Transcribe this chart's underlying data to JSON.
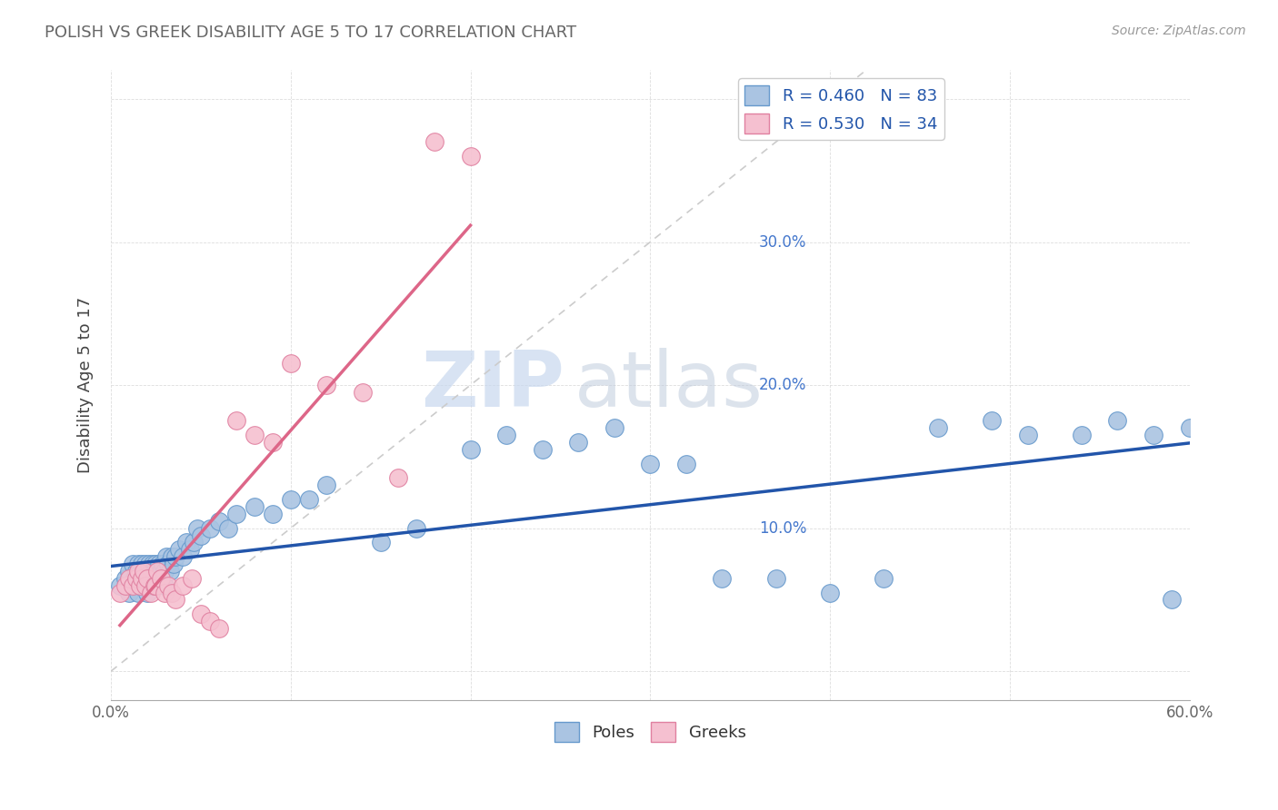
{
  "title": "POLISH VS GREEK DISABILITY AGE 5 TO 17 CORRELATION CHART",
  "source": "Source: ZipAtlas.com",
  "ylabel": "Disability Age 5 to 17",
  "xlim": [
    0.0,
    0.6
  ],
  "ylim": [
    -0.02,
    0.42
  ],
  "poles_color": "#aac4e2",
  "poles_edge_color": "#6699cc",
  "greeks_color": "#f5c0d0",
  "greeks_edge_color": "#e080a0",
  "poles_R": 0.46,
  "poles_N": 83,
  "greeks_R": 0.53,
  "greeks_N": 34,
  "poles_line_color": "#2255aa",
  "greeks_line_color": "#dd6688",
  "diagonal_color": "#cccccc",
  "watermark_zip": "ZIP",
  "watermark_atlas": "atlas",
  "right_axis_color": "#4477cc",
  "poles_x": [
    0.005,
    0.008,
    0.01,
    0.01,
    0.012,
    0.012,
    0.013,
    0.014,
    0.015,
    0.015,
    0.015,
    0.016,
    0.016,
    0.017,
    0.017,
    0.018,
    0.018,
    0.019,
    0.019,
    0.02,
    0.02,
    0.02,
    0.021,
    0.021,
    0.022,
    0.022,
    0.023,
    0.023,
    0.024,
    0.024,
    0.025,
    0.025,
    0.026,
    0.026,
    0.027,
    0.028,
    0.028,
    0.029,
    0.03,
    0.03,
    0.031,
    0.032,
    0.033,
    0.034,
    0.035,
    0.036,
    0.038,
    0.04,
    0.042,
    0.044,
    0.046,
    0.048,
    0.05,
    0.055,
    0.06,
    0.065,
    0.07,
    0.08,
    0.09,
    0.1,
    0.11,
    0.12,
    0.15,
    0.17,
    0.2,
    0.22,
    0.24,
    0.26,
    0.28,
    0.3,
    0.32,
    0.34,
    0.37,
    0.4,
    0.43,
    0.46,
    0.49,
    0.51,
    0.54,
    0.56,
    0.58,
    0.59,
    0.6
  ],
  "poles_y": [
    0.06,
    0.065,
    0.055,
    0.07,
    0.06,
    0.075,
    0.065,
    0.07,
    0.055,
    0.065,
    0.075,
    0.06,
    0.07,
    0.065,
    0.075,
    0.06,
    0.07,
    0.065,
    0.075,
    0.055,
    0.065,
    0.07,
    0.06,
    0.075,
    0.065,
    0.07,
    0.06,
    0.075,
    0.065,
    0.07,
    0.06,
    0.075,
    0.07,
    0.065,
    0.075,
    0.065,
    0.07,
    0.075,
    0.06,
    0.07,
    0.08,
    0.075,
    0.07,
    0.08,
    0.075,
    0.08,
    0.085,
    0.08,
    0.09,
    0.085,
    0.09,
    0.1,
    0.095,
    0.1,
    0.105,
    0.1,
    0.11,
    0.115,
    0.11,
    0.12,
    0.12,
    0.13,
    0.09,
    0.1,
    0.155,
    0.165,
    0.155,
    0.16,
    0.17,
    0.145,
    0.145,
    0.065,
    0.065,
    0.055,
    0.065,
    0.17,
    0.175,
    0.165,
    0.165,
    0.175,
    0.165,
    0.05,
    0.17
  ],
  "greeks_x": [
    0.005,
    0.008,
    0.01,
    0.012,
    0.014,
    0.015,
    0.016,
    0.017,
    0.018,
    0.019,
    0.02,
    0.022,
    0.024,
    0.025,
    0.026,
    0.028,
    0.03,
    0.032,
    0.034,
    0.036,
    0.04,
    0.045,
    0.05,
    0.055,
    0.06,
    0.07,
    0.08,
    0.09,
    0.1,
    0.12,
    0.14,
    0.16,
    0.18,
    0.2
  ],
  "greeks_y": [
    0.055,
    0.06,
    0.065,
    0.06,
    0.065,
    0.07,
    0.06,
    0.065,
    0.07,
    0.06,
    0.065,
    0.055,
    0.06,
    0.06,
    0.07,
    0.065,
    0.055,
    0.06,
    0.055,
    0.05,
    0.06,
    0.065,
    0.04,
    0.035,
    0.03,
    0.175,
    0.165,
    0.16,
    0.215,
    0.2,
    0.195,
    0.135,
    0.37,
    0.36
  ]
}
